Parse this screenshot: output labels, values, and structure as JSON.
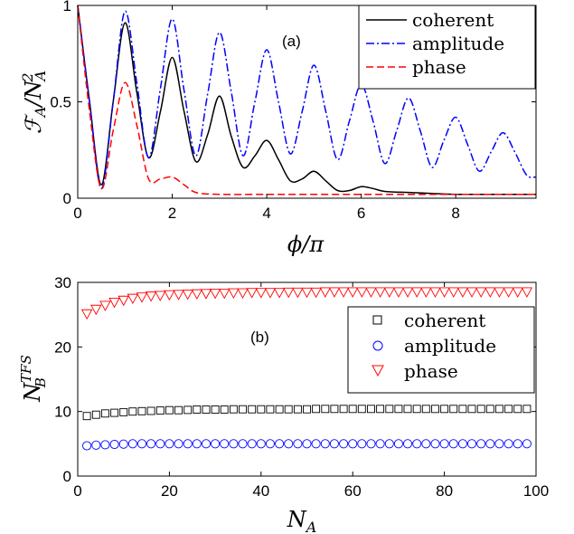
{
  "colors": {
    "coherent": "#000000",
    "amplitude": "#0000ff",
    "phase": "#ff0000"
  },
  "chart_data": [
    {
      "type": "line",
      "panel_label": "(a)",
      "xlabel": "ϕ/π",
      "ylabel": "ℱA/NA2",
      "xlim": [
        0,
        9.7
      ],
      "ylim": [
        0,
        1
      ],
      "xticks": [
        "0",
        "2",
        "4",
        "6",
        "8"
      ],
      "yticks": [
        "0",
        "0.5",
        "1"
      ],
      "xtick_values": [
        0,
        2,
        4,
        6,
        8
      ],
      "ytick_values": [
        0,
        0.5,
        1
      ],
      "legend_position": "top-right",
      "legend": [
        "coherent",
        "amplitude",
        "phase"
      ],
      "series": [
        {
          "name": "coherent",
          "line_style": "solid",
          "x": [
            0,
            0.25,
            0.5,
            0.75,
            1,
            1.25,
            1.5,
            1.75,
            2,
            2.25,
            2.5,
            2.75,
            3,
            3.25,
            3.5,
            3.75,
            4,
            4.25,
            4.5,
            4.75,
            5,
            5.25,
            5.5,
            5.75,
            6,
            6.25,
            6.5,
            7,
            7.5,
            8,
            9,
            9.7
          ],
          "y": [
            1,
            0.5,
            0.07,
            0.5,
            0.91,
            0.55,
            0.21,
            0.45,
            0.73,
            0.45,
            0.19,
            0.33,
            0.53,
            0.32,
            0.16,
            0.22,
            0.3,
            0.2,
            0.09,
            0.1,
            0.14,
            0.09,
            0.04,
            0.04,
            0.06,
            0.05,
            0.035,
            0.03,
            0.025,
            0.02,
            0.02,
            0.02
          ]
        },
        {
          "name": "amplitude",
          "line_style": "dashdot",
          "x": [
            0,
            0.25,
            0.5,
            0.75,
            1,
            1.25,
            1.5,
            1.75,
            2,
            2.25,
            2.5,
            2.75,
            3,
            3.25,
            3.5,
            3.75,
            4,
            4.25,
            4.5,
            4.75,
            5,
            5.25,
            5.5,
            5.75,
            6,
            6.25,
            6.5,
            6.75,
            7,
            7.25,
            7.5,
            7.75,
            8,
            8.25,
            8.5,
            8.75,
            9,
            9.25,
            9.5,
            9.7
          ],
          "y": [
            1,
            0.5,
            0.05,
            0.5,
            0.97,
            0.6,
            0.21,
            0.57,
            0.93,
            0.56,
            0.22,
            0.54,
            0.86,
            0.55,
            0.22,
            0.5,
            0.77,
            0.5,
            0.23,
            0.45,
            0.69,
            0.45,
            0.2,
            0.4,
            0.59,
            0.4,
            0.18,
            0.35,
            0.52,
            0.35,
            0.16,
            0.3,
            0.42,
            0.28,
            0.14,
            0.24,
            0.34,
            0.24,
            0.12,
            0.11
          ]
        },
        {
          "name": "phase",
          "line_style": "dashed",
          "x": [
            0,
            0.25,
            0.5,
            0.75,
            1,
            1.25,
            1.5,
            1.75,
            2,
            2.25,
            2.5,
            3,
            4,
            5,
            6,
            7,
            8,
            9,
            9.7
          ],
          "y": [
            1,
            0.45,
            0.05,
            0.35,
            0.6,
            0.38,
            0.1,
            0.1,
            0.11,
            0.07,
            0.03,
            0.02,
            0.02,
            0.02,
            0.02,
            0.02,
            0.02,
            0.02,
            0.02
          ]
        }
      ]
    },
    {
      "type": "scatter",
      "panel_label": "(b)",
      "xlabel": "NA",
      "ylabel": "NBTFS",
      "xlim": [
        0,
        100
      ],
      "ylim": [
        0,
        30
      ],
      "xticks": [
        "0",
        "20",
        "40",
        "60",
        "80",
        "100"
      ],
      "yticks": [
        "0",
        "10",
        "20",
        "30"
      ],
      "xtick_values": [
        0,
        20,
        40,
        60,
        80,
        100
      ],
      "ytick_values": [
        0,
        10,
        20,
        30
      ],
      "legend_position": "upper-right",
      "legend": [
        "coherent",
        "amplitude",
        "phase"
      ],
      "series": [
        {
          "name": "coherent",
          "marker": "square",
          "x_start": 2,
          "x_step": 2,
          "x_end": 98,
          "y": [
            9.3,
            9.5,
            9.7,
            9.8,
            9.9,
            10.0,
            10.05,
            10.1,
            10.15,
            10.2,
            10.2,
            10.25,
            10.3,
            10.3,
            10.3,
            10.3,
            10.35,
            10.35,
            10.35,
            10.35,
            10.35,
            10.35,
            10.35,
            10.35,
            10.35,
            10.4,
            10.4,
            10.4,
            10.4,
            10.4,
            10.4,
            10.4,
            10.4,
            10.4,
            10.4,
            10.4,
            10.4,
            10.4,
            10.4,
            10.4,
            10.4,
            10.4,
            10.4,
            10.4,
            10.4,
            10.4,
            10.4,
            10.4,
            10.4
          ]
        },
        {
          "name": "amplitude",
          "marker": "circle",
          "x_start": 2,
          "x_step": 2,
          "x_end": 98,
          "y": [
            4.7,
            4.8,
            4.85,
            4.9,
            4.95,
            5.0,
            5.0,
            5.0,
            5.0,
            5.0,
            5.0,
            5.0,
            5.0,
            5.0,
            5.0,
            5.0,
            5.0,
            5.0,
            5.0,
            5.0,
            5.0,
            5.0,
            5.0,
            5.0,
            5.0,
            5.0,
            5.0,
            5.0,
            5.0,
            5.0,
            5.0,
            5.0,
            5.0,
            5.0,
            5.0,
            5.0,
            5.0,
            5.0,
            5.0,
            5.0,
            5.0,
            5.0,
            5.0,
            5.0,
            5.0,
            5.0,
            5.0,
            5.0,
            5.0
          ]
        },
        {
          "name": "phase",
          "marker": "triangle-down",
          "x_start": 2,
          "x_step": 2,
          "x_end": 98,
          "y": [
            25.2,
            25.9,
            26.5,
            27.0,
            27.3,
            27.6,
            27.8,
            27.95,
            28.05,
            28.15,
            28.2,
            28.25,
            28.3,
            28.35,
            28.4,
            28.4,
            28.45,
            28.45,
            28.5,
            28.5,
            28.5,
            28.5,
            28.55,
            28.55,
            28.55,
            28.55,
            28.6,
            28.6,
            28.6,
            28.6,
            28.6,
            28.6,
            28.6,
            28.6,
            28.6,
            28.6,
            28.6,
            28.6,
            28.6,
            28.6,
            28.6,
            28.6,
            28.6,
            28.6,
            28.6,
            28.6,
            28.6,
            28.6,
            28.6
          ]
        }
      ]
    }
  ]
}
